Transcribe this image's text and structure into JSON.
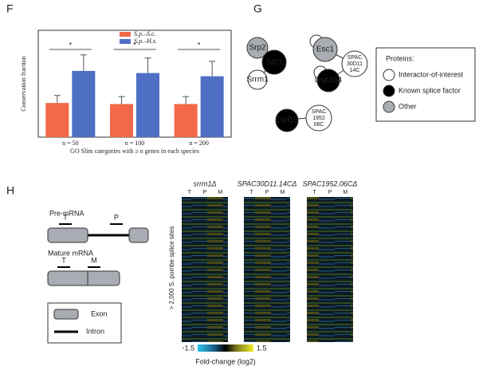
{
  "panels": [
    "F",
    "G",
    "H"
  ],
  "chart_data": {
    "type": "bar",
    "ylabel": "Conservation fraction",
    "xlabel": "GO Slim categories with ≥ n genes in each species",
    "categories": [
      "n = 50",
      "n = 100",
      "n = 200"
    ],
    "series": [
      {
        "name": "S.p.–S.c.",
        "color": "#f26849",
        "values": [
          0.32,
          0.31,
          0.31
        ],
        "errors": [
          0.07,
          0.07,
          0.07
        ]
      },
      {
        "name": "S.p.–H.s.",
        "color": "#4f6fc5",
        "values": [
          0.62,
          0.6,
          0.57
        ],
        "errors": [
          0.15,
          0.14,
          0.14
        ]
      }
    ],
    "significance": [
      "*",
      "*",
      "*"
    ],
    "ylim": [
      0,
      1
    ],
    "legend": "top"
  },
  "network": {
    "nodes": [
      {
        "lines": [
          "Srp2"
        ],
        "color": "#a9acb3"
      },
      {
        "lines": [
          "Srp1"
        ],
        "color": "#000000"
      },
      {
        "lines": [
          "Srrm1"
        ],
        "color": "#ffffff"
      },
      {
        "lines": [
          "Esc1"
        ],
        "color": "#a9acb3"
      },
      {
        "lines": [
          "SPAC",
          "30D11",
          "14C"
        ],
        "color": "#ffffff"
      },
      {
        "lines": [
          "Usp104"
        ],
        "color": "#000000"
      },
      {
        "lines": [
          "Cwf15"
        ],
        "color": "#000000"
      },
      {
        "lines": [
          "SPAC",
          "1952",
          "06C"
        ],
        "color": "#ffffff"
      }
    ],
    "legend_title": "Proteins:",
    "legend": [
      {
        "label": "Interactor-of-interest",
        "color": "#ffffff"
      },
      {
        "label": "Known splice factor",
        "color": "#000000"
      },
      {
        "label": "Other",
        "color": "#a9acb3"
      }
    ]
  },
  "schematic": {
    "pre_mrna": "Pre-mRNA",
    "pre_marks": [
      "T",
      "P"
    ],
    "mature_mrna": "Mature mRNA",
    "mature_marks": [
      "T",
      "M"
    ],
    "exon": "Exon",
    "intron": "Intron"
  },
  "heatmap": {
    "titles": [
      "srrm1Δ",
      "SPAC30D11.14CΔ",
      "SPAC1952.06CΔ"
    ],
    "columns": [
      "T",
      "P",
      "M"
    ],
    "ylabel": "> 2,000 S. pombe splice sites",
    "scale_min": "-1.5",
    "scale_max": "1.5",
    "scale_label": "Fold-change (log2)"
  }
}
